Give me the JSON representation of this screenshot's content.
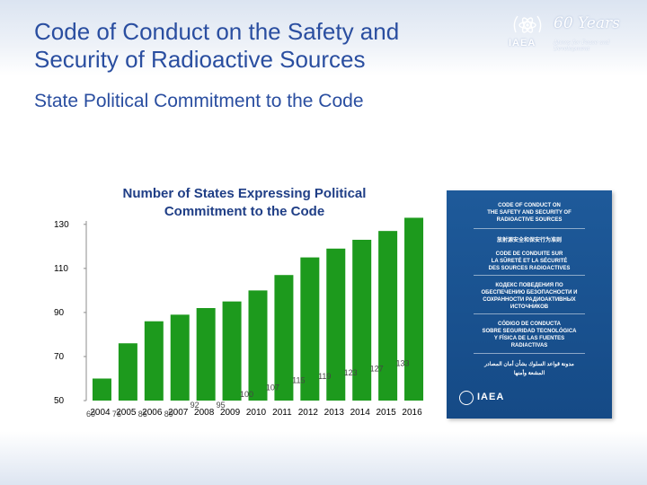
{
  "slide": {
    "title": "Code of Conduct on the Safety and Security of Radioactive Sources",
    "subtitle": "State Political Commitment to the Code"
  },
  "logo": {
    "years": "60 Years",
    "org": "IAEA",
    "tagline": "Atoms for Peace and Development",
    "icon": "iaea-emblem-icon"
  },
  "cover": {
    "lines": [
      "CODE OF CONDUCT ON",
      "THE SAFETY AND SECURITY OF",
      "RADIOACTIVE SOURCES",
      "放射源安全和保安行为准则",
      "CODE DE CONDUITE SUR",
      "LA SÛRETÉ ET LA SÉCURITÉ",
      "DES SOURCES RADIOACTIVES",
      "КОДЕКС ПОВЕДЕНИЯ ПО",
      "ОБЕСПЕЧЕНИЮ БЕЗОПАСНОСТИ И",
      "СОХРАННОСТИ РАДИОАКТИВНЫХ",
      "ИСТОЧНИКОВ",
      "CÓDIGO DE CONDUCTA",
      "SOBRE SEGURIDAD TECNOLÓGICA",
      "Y FÍSICA DE LAS FUENTES",
      "RADIACTIVAS",
      "مدونة قواعد السلوك بشأن أمان المصادر",
      "المشعة وأمنها"
    ],
    "org": "IAEA",
    "icon": "iaea-emblem-icon"
  },
  "colors": {
    "title": "#2a4ea0",
    "bar": "#1d9a1d",
    "axis_text": "#000000",
    "cover_bg": "#1e5a9a"
  },
  "chart_data": {
    "type": "bar",
    "title": "Number of States Expressing Political Commitment to the Code",
    "categories": [
      "2004",
      "2005",
      "2006",
      "2007",
      "2008",
      "2009",
      "2010",
      "2011",
      "2012",
      "2013",
      "2014",
      "2015",
      "2016"
    ],
    "values": [
      60,
      76,
      86,
      89,
      92,
      95,
      100,
      107,
      115,
      119,
      123,
      127,
      133
    ],
    "data_labels": [
      "60",
      "76",
      "86",
      "89",
      "92",
      "95",
      "100",
      "107",
      "115",
      "119",
      "123",
      "127",
      "133"
    ],
    "xlabel": "",
    "ylabel": "",
    "y_ticks": [
      50,
      70,
      90,
      110,
      130
    ],
    "ylim": [
      50,
      133
    ],
    "grid": false,
    "legend": "none"
  }
}
